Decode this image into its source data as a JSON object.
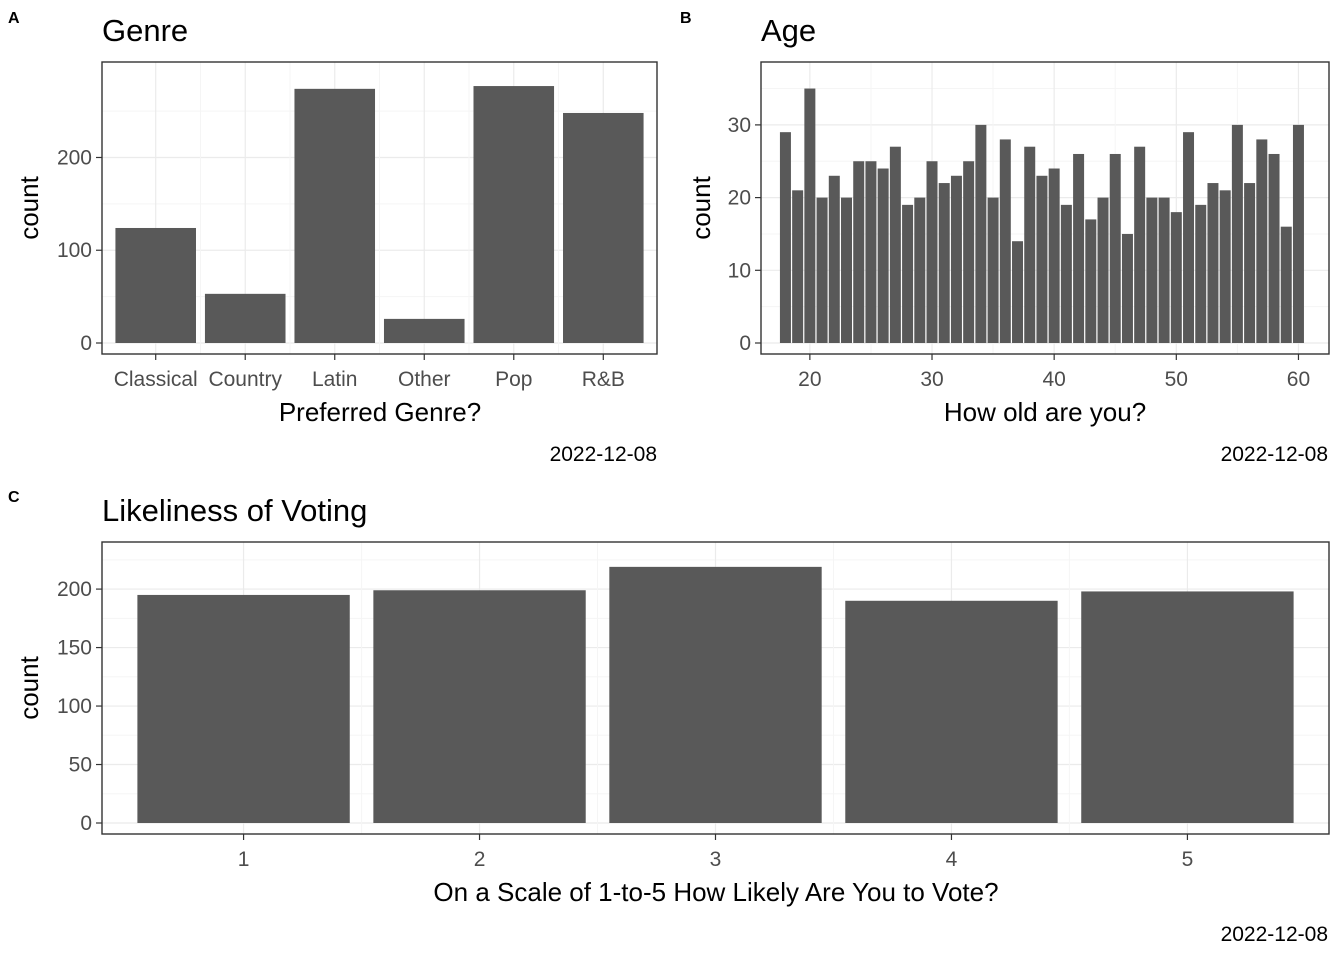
{
  "colors": {
    "bar": "#595959",
    "grid_major": "#ebebeb",
    "grid_minor": "#f5f5f5",
    "panel_border": "#333333",
    "tick_text": "#4d4d4d",
    "text": "#000000"
  },
  "chart_data": [
    {
      "tag": "A",
      "type": "bar",
      "title": "Genre",
      "xlabel": "Preferred Genre?",
      "ylabel": "count",
      "caption": "2022-12-08",
      "categories": [
        "Classical",
        "Country",
        "Latin",
        "Other",
        "Pop",
        "R&B"
      ],
      "values": [
        124,
        53,
        274,
        26,
        277,
        248
      ],
      "ylim": [
        0,
        290
      ],
      "yticks": [
        0,
        100,
        200
      ],
      "grid": true
    },
    {
      "tag": "B",
      "type": "bar",
      "title": "Age",
      "xlabel": "How old are you?",
      "ylabel": "count",
      "caption": "2022-12-08",
      "x": [
        18,
        19,
        20,
        21,
        22,
        23,
        24,
        25,
        26,
        27,
        28,
        29,
        30,
        31,
        32,
        33,
        34,
        35,
        36,
        37,
        38,
        39,
        40,
        41,
        42,
        43,
        44,
        45,
        46,
        47,
        48,
        49,
        50,
        51,
        52,
        53,
        54,
        55,
        56,
        57,
        58,
        59,
        60
      ],
      "values": [
        29,
        21,
        35,
        20,
        23,
        20,
        25,
        25,
        24,
        27,
        19,
        20,
        25,
        22,
        23,
        25,
        30,
        20,
        28,
        14,
        27,
        23,
        24,
        19,
        26,
        17,
        20,
        26,
        15,
        27,
        20,
        20,
        18,
        29,
        19,
        22,
        21,
        30,
        22,
        28,
        26,
        16,
        30
      ],
      "xlim": [
        16,
        62.5
      ],
      "xticks": [
        20,
        30,
        40,
        50,
        60
      ],
      "ylim": [
        0,
        37
      ],
      "yticks": [
        0,
        10,
        20,
        30
      ],
      "grid": true
    },
    {
      "tag": "C",
      "type": "bar",
      "title": "Likeliness of Voting",
      "xlabel": "On a Scale of 1-to-5 How Likely Are You to Vote?",
      "ylabel": "count",
      "caption": "2022-12-08",
      "categories": [
        "1",
        "2",
        "3",
        "4",
        "5"
      ],
      "values": [
        195,
        199,
        219,
        190,
        198
      ],
      "ylim": [
        0,
        230
      ],
      "yticks": [
        0,
        50,
        100,
        150,
        200
      ],
      "grid": true
    }
  ]
}
